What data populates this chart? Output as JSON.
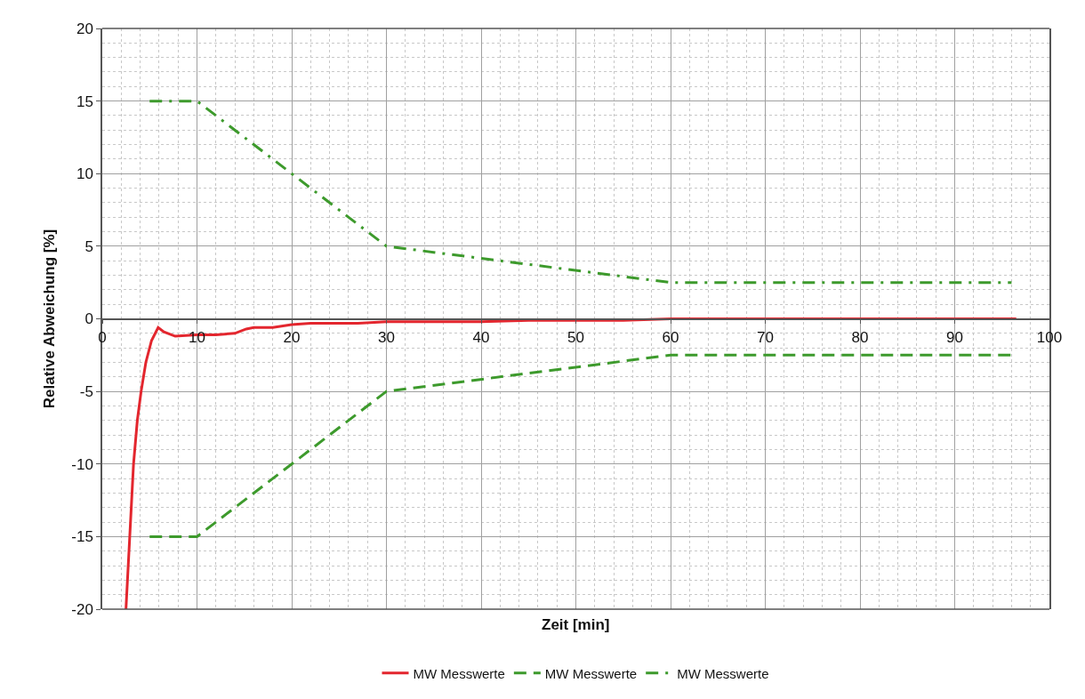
{
  "chart_data": {
    "type": "line",
    "xlabel": "Zeit [min]",
    "ylabel": "Relative Abweichung [%]",
    "xlim": [
      0,
      100
    ],
    "ylim": [
      -20,
      20
    ],
    "xticks": [
      0,
      10,
      20,
      30,
      40,
      50,
      60,
      70,
      80,
      90,
      100
    ],
    "yticks": [
      -20,
      -15,
      -10,
      -5,
      0,
      5,
      10,
      15,
      20
    ],
    "grid": true,
    "legend": "bottom",
    "series": [
      {
        "name": "MW Messwerte",
        "color": "#e3262e",
        "line_style": "solid",
        "x": [
          2.5,
          2.9,
          3.3,
          3.7,
          4.1,
          4.6,
          5.2,
          5.9,
          6.5,
          7.7,
          10,
          12,
          14,
          15.2,
          16,
          18,
          20,
          22,
          25,
          27,
          30,
          35,
          40,
          45,
          50,
          55,
          60,
          70,
          80,
          90,
          96.5
        ],
        "values": [
          -20,
          -15,
          -10,
          -7,
          -5,
          -3,
          -1.5,
          -0.6,
          -0.9,
          -1.2,
          -1.1,
          -1.1,
          -1,
          -0.7,
          -0.6,
          -0.6,
          -0.4,
          -0.3,
          -0.3,
          -0.3,
          -0.2,
          -0.2,
          -0.2,
          -0.1,
          -0.1,
          -0.1,
          0,
          0,
          0,
          0,
          0
        ]
      },
      {
        "name": "MW Messwerte",
        "color": "#3d9a2c",
        "line_style": "dashed",
        "x": [
          5,
          10,
          30,
          60,
          96
        ],
        "values": [
          -15,
          -15,
          -5,
          -2.5,
          -2.5
        ]
      },
      {
        "name": "MW Messwerte",
        "color": "#3d9a2c",
        "line_style": "dashdot",
        "x": [
          5,
          10,
          30,
          60,
          96
        ],
        "values": [
          15,
          15,
          5,
          2.5,
          2.5
        ]
      }
    ]
  }
}
